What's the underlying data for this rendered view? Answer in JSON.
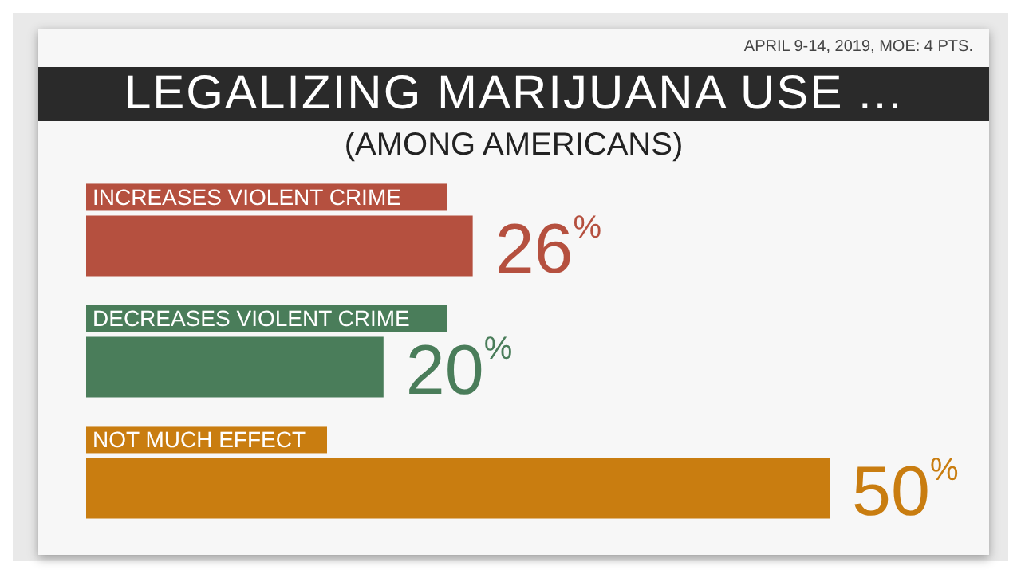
{
  "chart_data": {
    "type": "bar",
    "orientation": "horizontal",
    "title": "LEGALIZING MARIJUANA USE ...",
    "subtitle": "(AMONG AMERICANS)",
    "annotations": [
      "APRIL 9-14, 2019, MOE: 4 PTS."
    ],
    "categories": [
      "INCREASES VIOLENT CRIME",
      "DECREASES VIOLENT CRIME",
      "NOT MUCH EFFECT"
    ],
    "values": [
      26,
      20,
      50
    ],
    "colors": [
      "#b5503f",
      "#4a7d5a",
      "#c97d10"
    ],
    "value_labels": [
      "26%",
      "20%",
      "50%"
    ]
  }
}
